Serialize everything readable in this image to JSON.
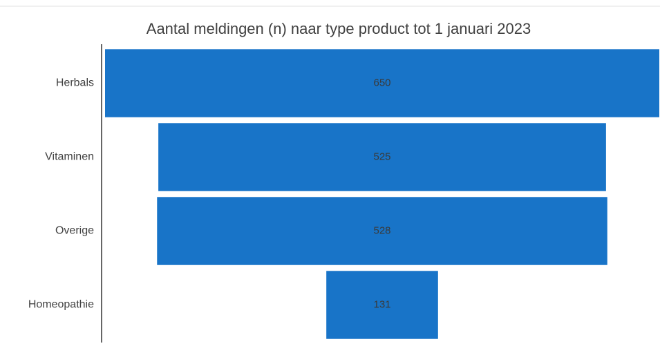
{
  "chart_data": {
    "type": "funnel",
    "title": "Aantal meldingen (n) naar type product tot 1 januari 2023",
    "categories": [
      "Herbals",
      "Vitaminen",
      "Overige",
      "Homeopathie"
    ],
    "values": [
      650,
      525,
      528,
      131
    ],
    "color": "#1874c8"
  }
}
